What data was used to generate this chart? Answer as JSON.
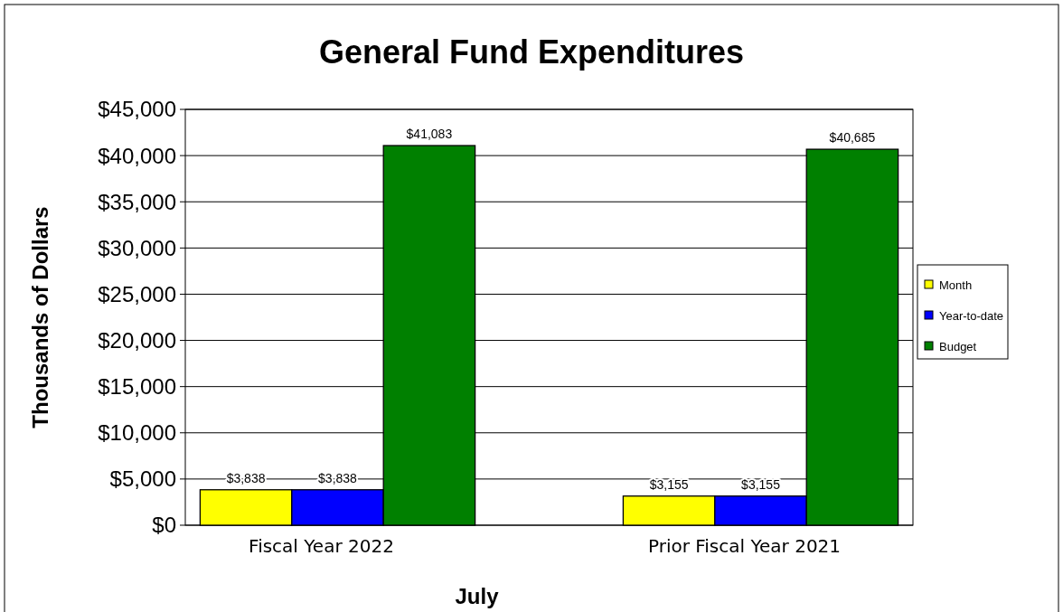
{
  "chart_data": {
    "type": "bar",
    "title": "General Fund Expenditures",
    "xlabel": "July",
    "ylabel": "Thousands of Dollars",
    "categories": [
      "Fiscal Year 2022",
      "Prior Fiscal Year 2021"
    ],
    "series": [
      {
        "name": "Month",
        "color": "#ffff00",
        "values": [
          3838,
          3155
        ],
        "value_labels": [
          "$3,838",
          "$3,155"
        ]
      },
      {
        "name": "Year-to-date",
        "color": "#0000ff",
        "values": [
          3838,
          3155
        ],
        "value_labels": [
          "$3,838",
          "$3,155"
        ]
      },
      {
        "name": "Budget",
        "color": "#008000",
        "values": [
          41083,
          40685
        ],
        "value_labels": [
          "$41,083",
          "$40,685"
        ]
      }
    ],
    "ylim": [
      0,
      45000
    ],
    "yticks": [
      {
        "value": 0,
        "label": "$0"
      },
      {
        "value": 5000,
        "label": "$5,000"
      },
      {
        "value": 10000,
        "label": "$10,000"
      },
      {
        "value": 15000,
        "label": "$15,000"
      },
      {
        "value": 20000,
        "label": "$20,000"
      },
      {
        "value": 25000,
        "label": "$25,000"
      },
      {
        "value": 30000,
        "label": "$30,000"
      },
      {
        "value": 35000,
        "label": "$35,000"
      },
      {
        "value": 40000,
        "label": "$40,000"
      },
      {
        "value": 45000,
        "label": "$45,000"
      }
    ],
    "grid": "y",
    "legend": "right"
  }
}
